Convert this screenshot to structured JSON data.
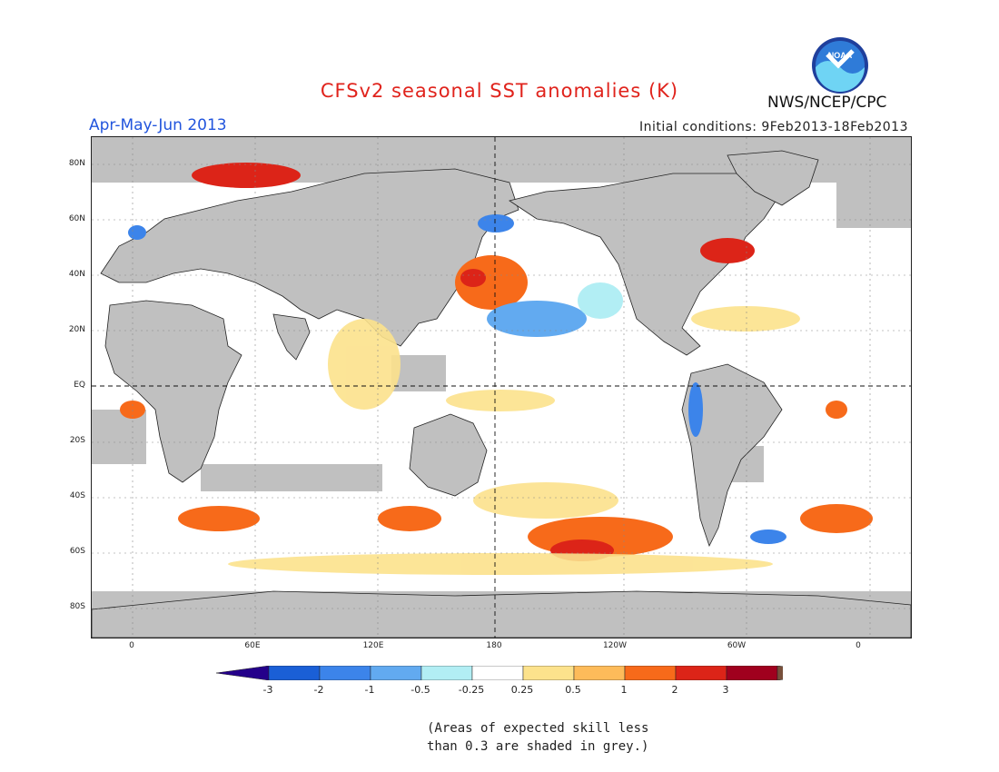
{
  "header": {
    "title": "CFSv2 seasonal SST anomalies (K)",
    "period": "Apr-May-Jun 2013",
    "initial_conditions": "Initial conditions: 9Feb2013-18Feb2013",
    "agency": "NWS/NCEP/CPC",
    "logo_text": "NOAA"
  },
  "map": {
    "projection": "equirectangular",
    "lon_range": [
      -20,
      380
    ],
    "lat_range": [
      -90,
      90
    ],
    "y_axis_labels": [
      "80N",
      "60N",
      "40N",
      "20N",
      "EQ",
      "20S",
      "40S",
      "60S",
      "80S"
    ],
    "x_axis_labels": [
      "0",
      "60E",
      "120E",
      "180",
      "120W",
      "60W",
      "0"
    ],
    "grey_meaning": "skill less than 0.3",
    "ocean_neutral_color": "#ffffff",
    "land_color": "#c0c0c0"
  },
  "colorbar": {
    "tick_labels": [
      "-3",
      "-2",
      "-1",
      "-0.5",
      "-0.25",
      "0.25",
      "0.5",
      "1",
      "2",
      "3"
    ],
    "colors": [
      "#24008a",
      "#1a5fd6",
      "#3c84ea",
      "#62aaf0",
      "#b2eef4",
      "#ffffff",
      "#fce28c",
      "#fdbb5a",
      "#f76a1a",
      "#dc2418",
      "#a0001e",
      "#78503c"
    ]
  },
  "note": {
    "line1": "(Areas of expected skill less",
    "line2": "than 0.3 are shaded in grey.)"
  }
}
